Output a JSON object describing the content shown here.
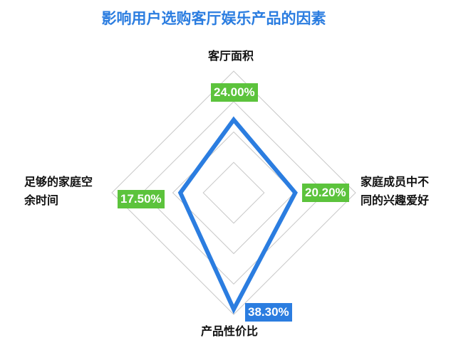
{
  "chart_data": {
    "type": "radar",
    "title": "影响用户选购客厅娱乐产品的因素",
    "categories": [
      "客厅面积",
      "家庭成员中不同的兴趣爱好",
      "产品性价比",
      "足够的家庭空余时间"
    ],
    "category_lines": [
      [
        "客厅面积"
      ],
      [
        "家庭成员中不",
        "同的兴趣爱好"
      ],
      [
        "产品性价比"
      ],
      [
        "足够的家庭空",
        "余时间"
      ]
    ],
    "values": [
      0.24,
      0.202,
      0.383,
      0.175
    ],
    "data_labels": [
      "24.00%",
      "20.20%",
      "38.30%",
      "17.50%"
    ],
    "data_label_colors": [
      "#5cc33c",
      "#5cc33c",
      "#2b7de0",
      "#5cc33c"
    ],
    "rlim": [
      0,
      0.4
    ],
    "grid_rings": 4,
    "grid": true,
    "series_color": "#2b7de0",
    "grid_color": "#c8c8c8"
  }
}
